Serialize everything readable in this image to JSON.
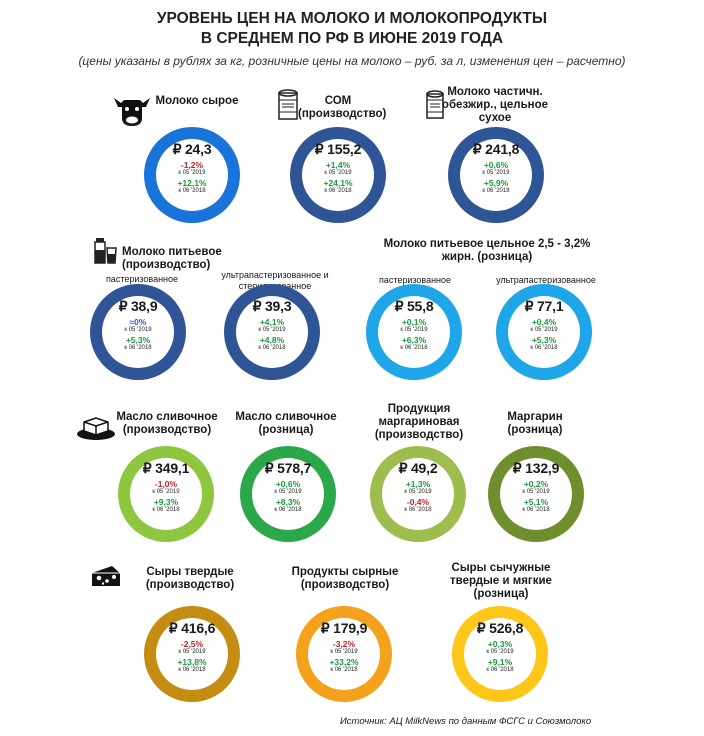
{
  "header": {
    "title_line1": "УРОВЕНЬ ЦЕН НА МОЛОКО И МОЛОКОПРОДУКТЫ",
    "title_line2": "В СРЕДНЕМ ПО РФ В ИЮНЕ 2019 ГОДА",
    "subtitle": "(цены указаны в рублях за кг, розничные цены на молоко – руб. за л, изменения цен – расчетно)"
  },
  "notes": {
    "may": "к 05 '2019",
    "jun": "к 06 '2018"
  },
  "icons": [
    "cow-icon",
    "milk-powder-can-icon",
    "milk-carton-icon",
    "butter-icon",
    "cheese-icon"
  ],
  "colors": {
    "dark_blue": "#2f5597",
    "light_blue": "#1fa6e8",
    "light_green": "#8fc640",
    "green": "#2aa84a",
    "olive": "#9fbc4f",
    "dark_olive": "#6f8e2e",
    "dark_gold": "#c48c10",
    "orange": "#f4a11c",
    "yellow": "#ffc61a",
    "bright_blue": "#1a73d9",
    "up": "#1a9a3a",
    "down": "#c21f1f"
  },
  "groups": {
    "milk_production": "Молоко питьевое (производство)",
    "milk_retail": "Молоко питьевое цельное 2,5 - 3,2% жирн. (розница)"
  },
  "items": [
    {
      "label": "Молоко сырое",
      "price": "₽ 24,3",
      "c1": "-1,2%",
      "c2": "+12,1%",
      "color": "#1a73d9"
    },
    {
      "label": "СОМ (производство)",
      "price": "₽ 155,2",
      "c1": "+1,4%",
      "c2": "+24,1%",
      "color": "#2f5597"
    },
    {
      "label": "Молоко частичн. обезжир., цельное сухое",
      "price": "₽ 241,8",
      "c1": "+0,6%",
      "c2": "+5,9%",
      "color": "#2f5597"
    },
    {
      "label": "пастеризованное",
      "price": "₽ 38,9",
      "c1": "≈0%",
      "c2": "+5,3%",
      "color": "#2f5597"
    },
    {
      "label": "ультрапастеризованное и стерилизованное",
      "price": "₽ 39,3",
      "c1": "+4,1%",
      "c2": "+4,8%",
      "color": "#2f5597"
    },
    {
      "label": "пастеризованное",
      "price": "₽ 55,8",
      "c1": "+0,1%",
      "c2": "+6,3%",
      "color": "#1fa6e8"
    },
    {
      "label": "ультрапастеризованное",
      "price": "₽ 77,1",
      "c1": "+0,4%",
      "c2": "+5,3%",
      "color": "#1fa6e8"
    },
    {
      "label": "Масло сливочное (производство)",
      "price": "₽ 349,1",
      "c1": "-1,0%",
      "c2": "+9,3%",
      "color": "#8fc640"
    },
    {
      "label": "Масло сливочное (розница)",
      "price": "₽ 578,7",
      "c1": "+0,6%",
      "c2": "+8,3%",
      "color": "#2aa84a"
    },
    {
      "label": "Продукция маргариновая (производство)",
      "price": "₽ 49,2",
      "c1": "+1,3%",
      "c2": "-0,4%",
      "color": "#9fbc4f"
    },
    {
      "label": "Маргарин (розница)",
      "price": "₽ 132,9",
      "c1": "+0,2%",
      "c2": "+5,1%",
      "color": "#6f8e2e"
    },
    {
      "label": "Сыры твердые (производство)",
      "price": "₽ 416,6",
      "c1": "-2,5%",
      "c2": "+13,8%",
      "color": "#c48c10"
    },
    {
      "label": "Продукты сырные (производство)",
      "price": "₽ 179,9",
      "c1": "-3,2%",
      "c2": "+33,2%",
      "color": "#f4a11c"
    },
    {
      "label": "Сыры сычужные твердые и мягкие (розница)",
      "price": "₽ 526,8",
      "c1": "+0,3%",
      "c2": "+9,1%",
      "color": "#ffc61a"
    }
  ],
  "source": "Источник: АЦ MilkNews по данным ФСГС и Союзмолоко"
}
